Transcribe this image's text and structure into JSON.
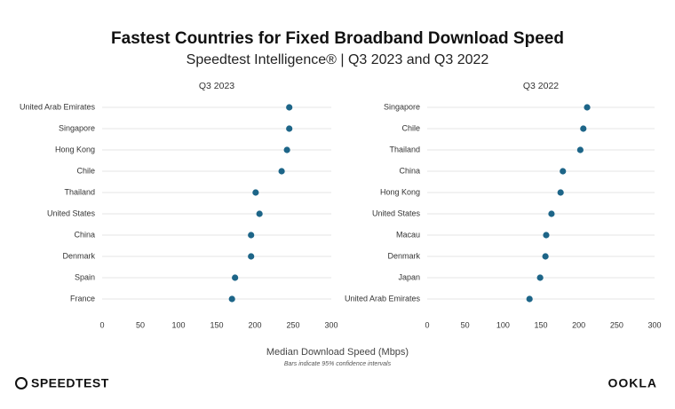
{
  "header": {
    "title": "Fastest Countries for Fixed Broadband Download Speed",
    "subtitle": "Speedtest Intelligence® | Q3 2023 and Q3 2022"
  },
  "chart_data": [
    {
      "type": "dot",
      "title": "Q3 2023",
      "categories": [
        "United Arab Emirates",
        "Singapore",
        "Hong Kong",
        "Chile",
        "Thailand",
        "United States",
        "China",
        "Denmark",
        "Spain",
        "France"
      ],
      "values": [
        245,
        245,
        242,
        235,
        201,
        206,
        195,
        195,
        174,
        170
      ],
      "color": "#1d6588",
      "xlim": [
        0,
        300
      ],
      "xticks": [
        0,
        50,
        100,
        150,
        200,
        250,
        300
      ]
    },
    {
      "type": "dot",
      "title": "Q3 2022",
      "categories": [
        "Singapore",
        "Chile",
        "Thailand",
        "China",
        "Hong Kong",
        "United States",
        "Macau",
        "Denmark",
        "Japan",
        "United Arab Emirates"
      ],
      "values": [
        211,
        206,
        202,
        179,
        176,
        164,
        157,
        156,
        149,
        135
      ],
      "color": "#1d6588",
      "xlim": [
        0,
        300
      ],
      "xticks": [
        0,
        50,
        100,
        150,
        200,
        250,
        300
      ]
    }
  ],
  "footer": {
    "x_label": "Median Download Speed (Mbps)",
    "note": "Bars indicate 95% confidence intervals",
    "brand": "SPEEDTEST",
    "logo": "OOKLA"
  }
}
